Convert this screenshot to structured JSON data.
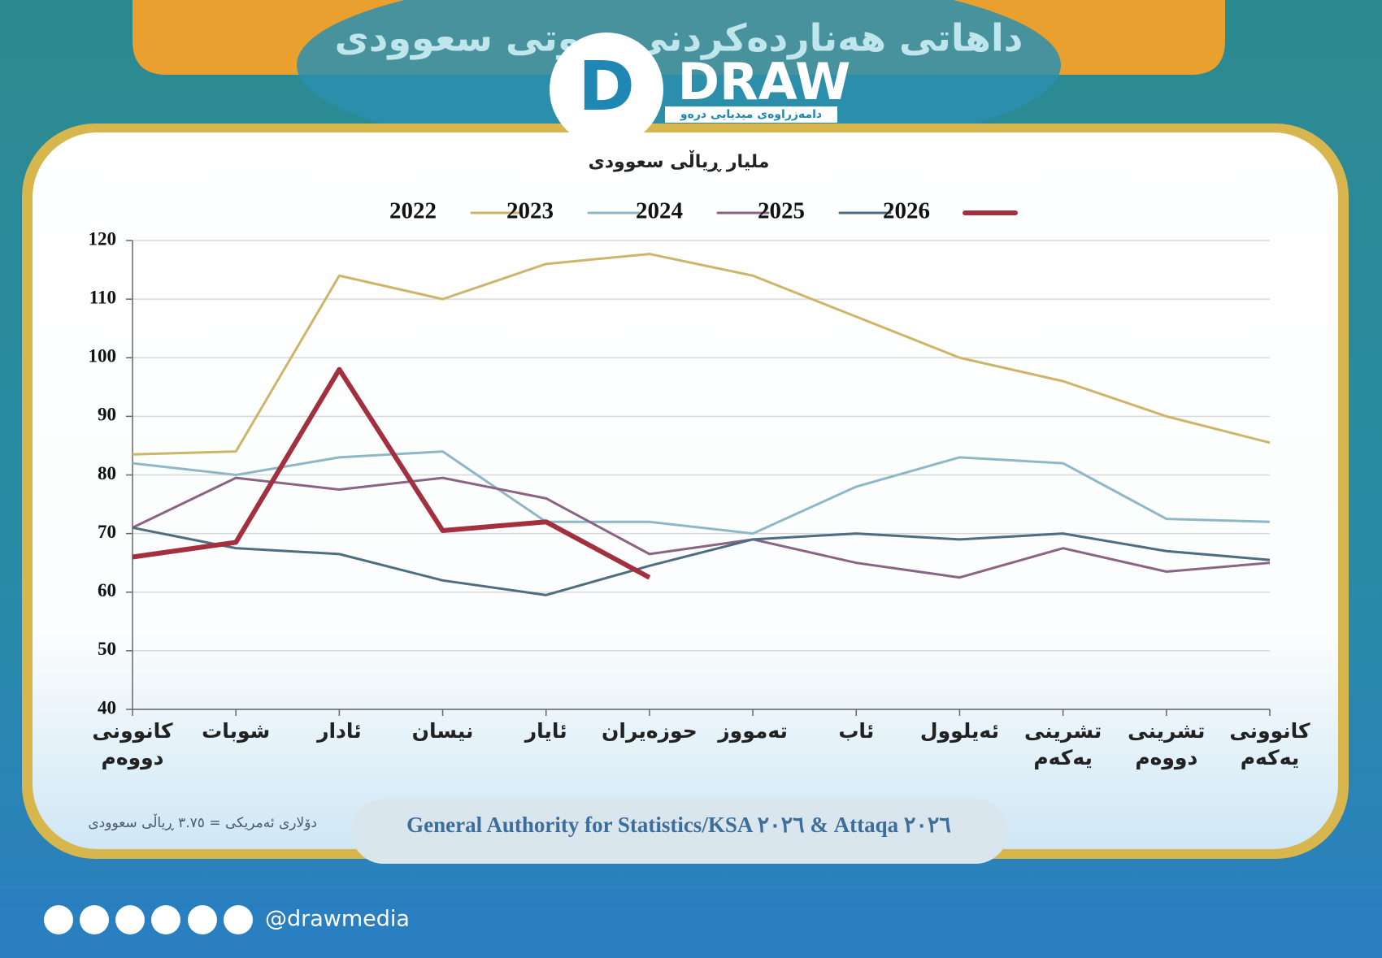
{
  "header": {
    "title": "داهاتی هەناردەکردنی نەوتی سعوودی",
    "logo": "DRAW",
    "logo_subtitle": "دامەزراوەی میدیایی درەو"
  },
  "chart_data": {
    "type": "line",
    "y_axis_label": "ملیار ڕیاڵی سعوودی",
    "categories": [
      "کانوونی دووەم",
      "شوبات",
      "ئادار",
      "نیسان",
      "ئایار",
      "حوزەیران",
      "تەمووز",
      "ئاب",
      "ئەیلوول",
      "تشرینی یەکەم",
      "تشرینی دووەم",
      "کانوونی یەکەم"
    ],
    "series": [
      {
        "name": "2022",
        "color": "#cdb56a",
        "values": [
          83.5,
          84,
          114,
          110,
          116,
          117.7,
          114,
          107,
          100,
          96,
          90,
          85.5
        ]
      },
      {
        "name": "2023",
        "color": "#8fb8c6",
        "values": [
          82,
          80,
          83,
          84,
          72,
          72,
          70,
          78,
          83,
          82,
          72.5,
          72
        ]
      },
      {
        "name": "2024",
        "color": "#8b6484",
        "values": [
          71,
          79.5,
          77.5,
          79.5,
          76,
          66.5,
          69,
          65,
          62.5,
          67.5,
          63.5,
          65
        ]
      },
      {
        "name": "2025",
        "color": "#4d6e80",
        "values": [
          71,
          67.5,
          66.5,
          62,
          59.5,
          64.5,
          69,
          70,
          69,
          70,
          67,
          65.5
        ]
      },
      {
        "name": "2026",
        "color": "#a3303f",
        "values": [
          66,
          68.5,
          98,
          70.5,
          72,
          62.5,
          null,
          null,
          null,
          null,
          null,
          null
        ]
      }
    ],
    "ylim": [
      40,
      120
    ],
    "yticks": [
      40,
      50,
      60,
      70,
      80,
      90,
      100,
      110,
      120
    ],
    "grid": true
  },
  "footnote": "دۆلاری ئەمریکی = ٣.٧٥ ڕیاڵی سعوودی",
  "source": "General Authority for Statistics/KSA ٢٠٢٦ & Attaqa ٢٠٢٦",
  "handle": "@drawmedia"
}
